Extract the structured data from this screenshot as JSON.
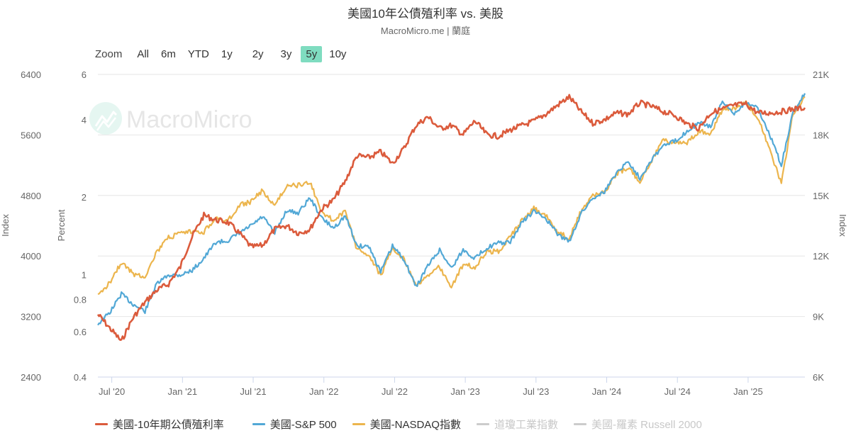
{
  "header": {
    "title": "美國10年公債殖利率 vs. 美股",
    "subtitle": "MacroMicro.me | 蘭庭"
  },
  "range_selector": {
    "label": "Zoom",
    "buttons": [
      "All",
      "6m",
      "YTD",
      "1y",
      "2y",
      "3y",
      "5y",
      "10y"
    ],
    "active": "5y"
  },
  "watermark": {
    "text": "MacroMicro",
    "icon": "macromicro-logo-icon"
  },
  "colors": {
    "yield": "#db5b3c",
    "sp500": "#52a8d6",
    "nasdaq": "#ecb54d",
    "disabled": "#cccccc",
    "active_range": "#7fdcc0",
    "grid": "#e6e6e6"
  },
  "axes": {
    "left_outer": {
      "title": "Index",
      "ticks": [
        "6400",
        "5600",
        "4800",
        "4000",
        "3200",
        "2400"
      ]
    },
    "left_inner": {
      "title": "Percent",
      "ticks": [
        "6",
        "4",
        "2",
        "1",
        "0.8",
        "0.6",
        "0.4"
      ]
    },
    "right": {
      "title": "Index",
      "ticks": [
        "21K",
        "18K",
        "15K",
        "12K",
        "9K",
        "6K"
      ]
    },
    "x": {
      "ticks": [
        "Jul '20",
        "Jan '21",
        "Jul '21",
        "Jan '22",
        "Jul '22",
        "Jan '23",
        "Jul '23",
        "Jan '24",
        "Jul '24",
        "Jan '25"
      ]
    }
  },
  "legend": [
    {
      "label": "美國-10年期公債殖利率",
      "color": "#db5b3c",
      "visible": true
    },
    {
      "label": "美國-S&P 500",
      "color": "#52a8d6",
      "visible": true
    },
    {
      "label": "美國-NASDAQ指數",
      "color": "#ecb54d",
      "visible": true
    },
    {
      "label": "道瓊工業指數",
      "color": "#cccccc",
      "visible": false
    },
    {
      "label": "美國-羅素 Russell 2000",
      "color": "#cccccc",
      "visible": false
    }
  ],
  "chart_data": {
    "type": "line",
    "title": "美國10年公債殖利率 vs. 美股",
    "subtitle": "MacroMicro.me | 蘭庭",
    "x": [
      "2020-06",
      "2020-07",
      "2020-08",
      "2020-09",
      "2020-10",
      "2020-11",
      "2020-12",
      "2021-01",
      "2021-02",
      "2021-03",
      "2021-04",
      "2021-05",
      "2021-06",
      "2021-07",
      "2021-08",
      "2021-09",
      "2021-10",
      "2021-11",
      "2021-12",
      "2022-01",
      "2022-02",
      "2022-03",
      "2022-04",
      "2022-05",
      "2022-06",
      "2022-07",
      "2022-08",
      "2022-09",
      "2022-10",
      "2022-11",
      "2022-12",
      "2023-01",
      "2023-02",
      "2023-03",
      "2023-04",
      "2023-05",
      "2023-06",
      "2023-07",
      "2023-08",
      "2023-09",
      "2023-10",
      "2023-11",
      "2023-12",
      "2024-01",
      "2024-02",
      "2024-03",
      "2024-04",
      "2024-05",
      "2024-06",
      "2024-07",
      "2024-08",
      "2024-09",
      "2024-10",
      "2024-11",
      "2024-12",
      "2025-01",
      "2025-02",
      "2025-03",
      "2025-04",
      "2025-05",
      "2025-06"
    ],
    "series": [
      {
        "name": "美國-10年期公債殖利率",
        "axis": "Percent (log)",
        "values": [
          0.7,
          0.62,
          0.55,
          0.68,
          0.78,
          0.87,
          0.92,
          1.07,
          1.4,
          1.7,
          1.63,
          1.6,
          1.45,
          1.28,
          1.3,
          1.5,
          1.55,
          1.45,
          1.5,
          1.8,
          1.95,
          2.3,
          2.9,
          2.85,
          3.0,
          2.7,
          3.1,
          3.8,
          4.1,
          3.7,
          3.8,
          3.5,
          3.95,
          3.5,
          3.45,
          3.65,
          3.8,
          3.95,
          4.2,
          4.55,
          4.9,
          4.3,
          3.88,
          4.0,
          4.25,
          4.2,
          4.65,
          4.5,
          4.3,
          4.15,
          3.85,
          3.7,
          4.25,
          4.4,
          4.55,
          4.6,
          4.25,
          4.25,
          4.3,
          4.4,
          4.45
        ]
      },
      {
        "name": "美國-S&P 500",
        "axis": "Index (left)",
        "values": [
          3100,
          3250,
          3500,
          3360,
          3270,
          3630,
          3750,
          3750,
          3810,
          3970,
          4180,
          4200,
          4300,
          4400,
          4520,
          4300,
          4600,
          4570,
          4770,
          4500,
          4370,
          4530,
          4130,
          4130,
          3790,
          4130,
          3955,
          3590,
          3870,
          4080,
          3840,
          4080,
          3970,
          4110,
          4170,
          4180,
          4450,
          4590,
          4500,
          4290,
          4190,
          4560,
          4770,
          4850,
          5100,
          5250,
          5030,
          5280,
          5460,
          5520,
          5650,
          5760,
          5710,
          6030,
          5880,
          6040,
          5950,
          5610,
          5200,
          5900,
          6150
        ]
      },
      {
        "name": "美國-NASDAQ指數",
        "axis": "Index (right)",
        "values": [
          10000,
          10700,
          11700,
          11100,
          11000,
          12200,
          12900,
          13100,
          13200,
          13200,
          13900,
          13700,
          14500,
          14700,
          15250,
          14450,
          15500,
          15500,
          15650,
          14200,
          13750,
          14200,
          12330,
          12080,
          11030,
          12390,
          11820,
          10570,
          10990,
          11470,
          10470,
          11580,
          11450,
          12220,
          12230,
          12930,
          13790,
          14350,
          14030,
          13220,
          12850,
          14230,
          15010,
          15160,
          16090,
          16380,
          15660,
          16730,
          17730,
          17600,
          17630,
          18190,
          18100,
          19220,
          19310,
          19630,
          18850,
          17300,
          15600,
          19100,
          19900
        ]
      }
    ],
    "yaxes": [
      {
        "title": "Index",
        "position": "left-outer",
        "range": [
          2400,
          6400
        ],
        "ticks": [
          2400,
          3200,
          4000,
          4800,
          5600,
          6400
        ]
      },
      {
        "title": "Percent",
        "position": "left-inner",
        "scale": "log",
        "range": [
          0.4,
          6
        ],
        "ticks": [
          0.4,
          0.6,
          0.8,
          1,
          2,
          4,
          6
        ]
      },
      {
        "title": "Index",
        "position": "right",
        "range": [
          6000,
          21000
        ],
        "ticks": [
          "6K",
          "9K",
          "12K",
          "15K",
          "18K",
          "21K"
        ]
      }
    ],
    "xlabel": "",
    "grid": true,
    "legend_position": "bottom"
  }
}
